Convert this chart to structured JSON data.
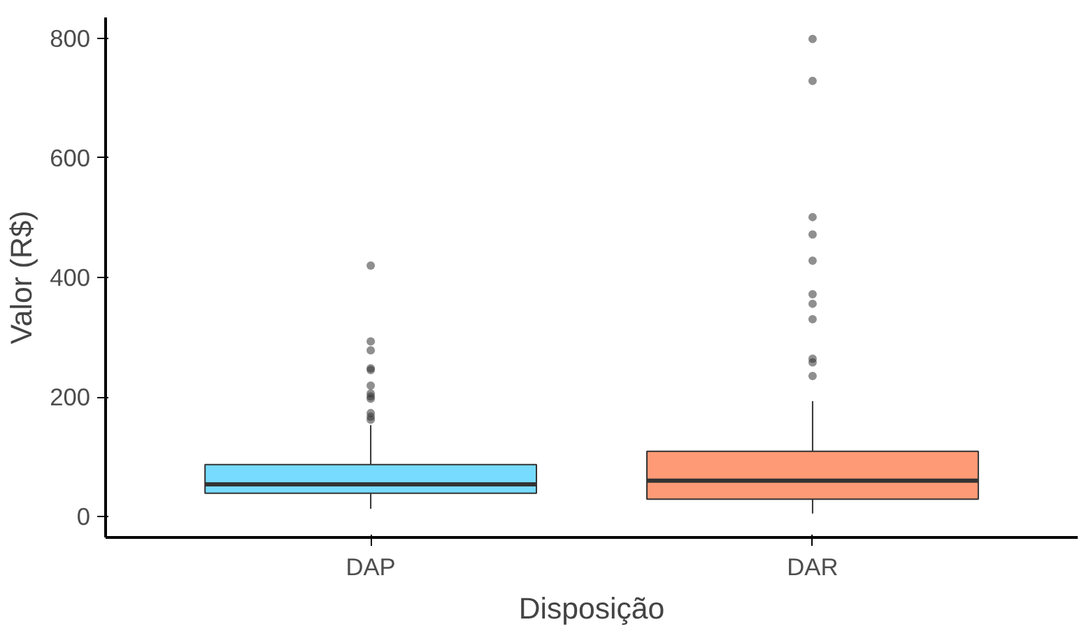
{
  "chart_data": {
    "type": "box",
    "xlabel": "Disposição",
    "ylabel": "Valor (R$)",
    "categories": [
      "DAP",
      "DAR"
    ],
    "colors": [
      "#76dbff",
      "#ff9a76"
    ],
    "boxes": [
      {
        "low": 13,
        "q1": 39,
        "median": 54,
        "q3": 87,
        "high": 153,
        "outliers": [
          420,
          293,
          278,
          248,
          245,
          219,
          206,
          201,
          197,
          173,
          167,
          162
        ]
      },
      {
        "low": 5,
        "q1": 29,
        "median": 60,
        "q3": 109,
        "high": 193,
        "outliers": [
          799,
          729,
          501,
          472,
          428,
          372,
          356,
          330,
          264,
          258,
          235
        ]
      }
    ],
    "ylim": [
      -35,
      835
    ],
    "yticks": [
      0,
      200,
      400,
      600,
      800
    ],
    "grid": false
  }
}
